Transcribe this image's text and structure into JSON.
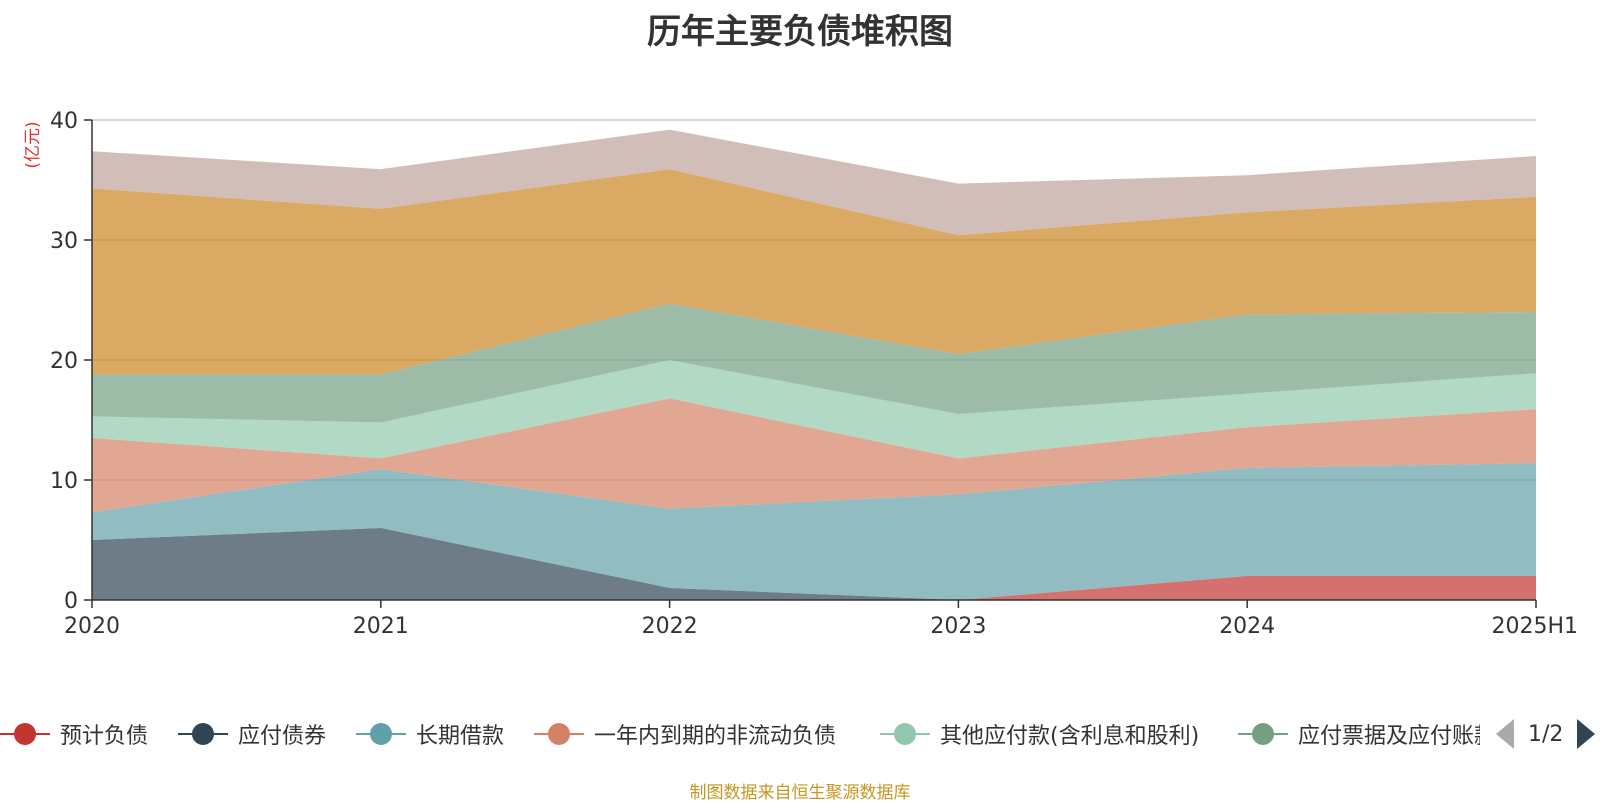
{
  "chart_data": {
    "type": "area",
    "stacked": true,
    "title": "历年主要负债堆积图",
    "ylabel": "(亿元)",
    "xlabel": "",
    "x": [
      "2020",
      "2021",
      "2022",
      "2023",
      "2024",
      "2025H1"
    ],
    "ylim": [
      0,
      40
    ],
    "yticks": [
      0,
      10,
      20,
      30,
      40
    ],
    "grid": true,
    "legend_position": "bottom",
    "series": [
      {
        "name": "预计负债",
        "color": "#c23531",
        "values": [
          0,
          0,
          0,
          0,
          2.0,
          2.0
        ]
      },
      {
        "name": "应付债券",
        "color": "#2f4554",
        "values": [
          5.0,
          6.0,
          1.0,
          0,
          0,
          0
        ]
      },
      {
        "name": "长期借款",
        "color": "#61a0a8",
        "values": [
          2.3,
          4.9,
          6.6,
          8.8,
          9.0,
          9.4
        ]
      },
      {
        "name": "一年内到期的非流动负债",
        "color": "#d48265",
        "values": [
          6.2,
          0.9,
          9.2,
          3.0,
          3.4,
          4.5
        ]
      },
      {
        "name": "其他应付款(含利息和股利)",
        "color": "#91c7ae",
        "values": [
          1.8,
          3.0,
          3.2,
          3.7,
          2.8,
          3.0
        ]
      },
      {
        "name": "应付票据及应付账款",
        "color": "#749f83",
        "values": [
          3.5,
          4.0,
          4.7,
          5.0,
          6.6,
          5.1
        ]
      },
      {
        "name": "",
        "color": "#ca8622",
        "values": [
          15.5,
          13.8,
          11.2,
          9.9,
          8.5,
          9.6
        ]
      },
      {
        "name": "",
        "color": "#bda29a",
        "values": [
          3.1,
          3.3,
          3.3,
          4.3,
          3.1,
          3.4
        ]
      }
    ]
  },
  "legend_pager": {
    "text": "1/2"
  },
  "source_note": "制图数据来自恒生聚源数据库"
}
